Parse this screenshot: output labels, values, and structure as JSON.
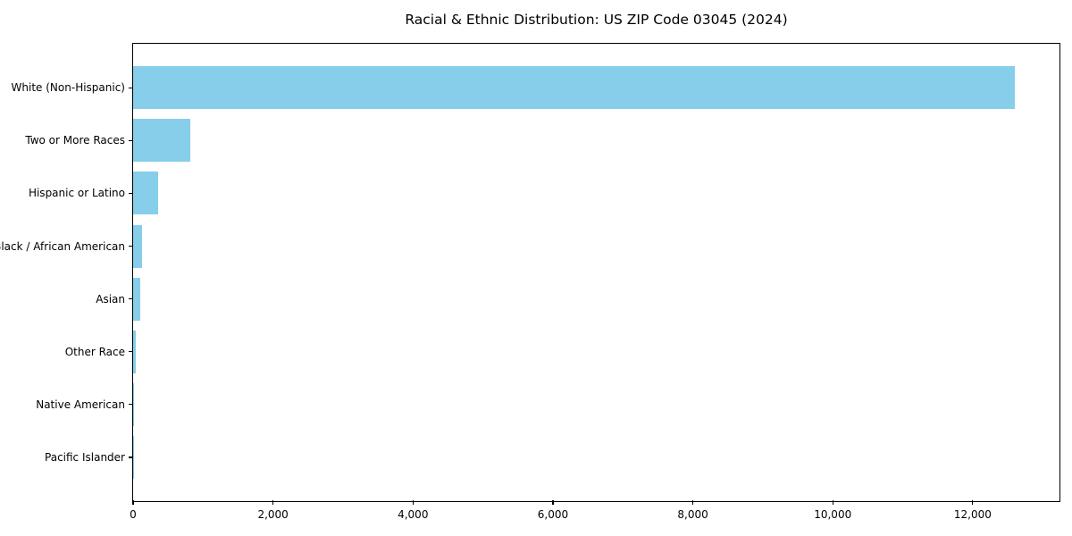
{
  "title": "Racial & Ethnic Distribution: US ZIP Code 03045 (2024)",
  "chart_data": {
    "type": "bar",
    "orientation": "horizontal",
    "title": "Racial & Ethnic Distribution: US ZIP Code 03045 (2024)",
    "categories": [
      "White (Non-Hispanic)",
      "Two or More Races",
      "Hispanic or Latino",
      "Black / African American",
      "Asian",
      "Other Race",
      "Native American",
      "Pacific Islander"
    ],
    "values": [
      12600,
      820,
      360,
      130,
      105,
      40,
      12,
      2
    ],
    "xlabel": "",
    "ylabel": "",
    "xlim": [
      0,
      13240
    ],
    "xticks": [
      0,
      2000,
      4000,
      6000,
      8000,
      10000,
      12000
    ],
    "xtick_labels": [
      "0",
      "2,000",
      "4,000",
      "6,000",
      "8,000",
      "10,000",
      "12,000"
    ],
    "bar_color": "#87CEEB",
    "frame_color": "#000000",
    "background_color": "#FFFFFF",
    "grid": false,
    "legend": null
  }
}
